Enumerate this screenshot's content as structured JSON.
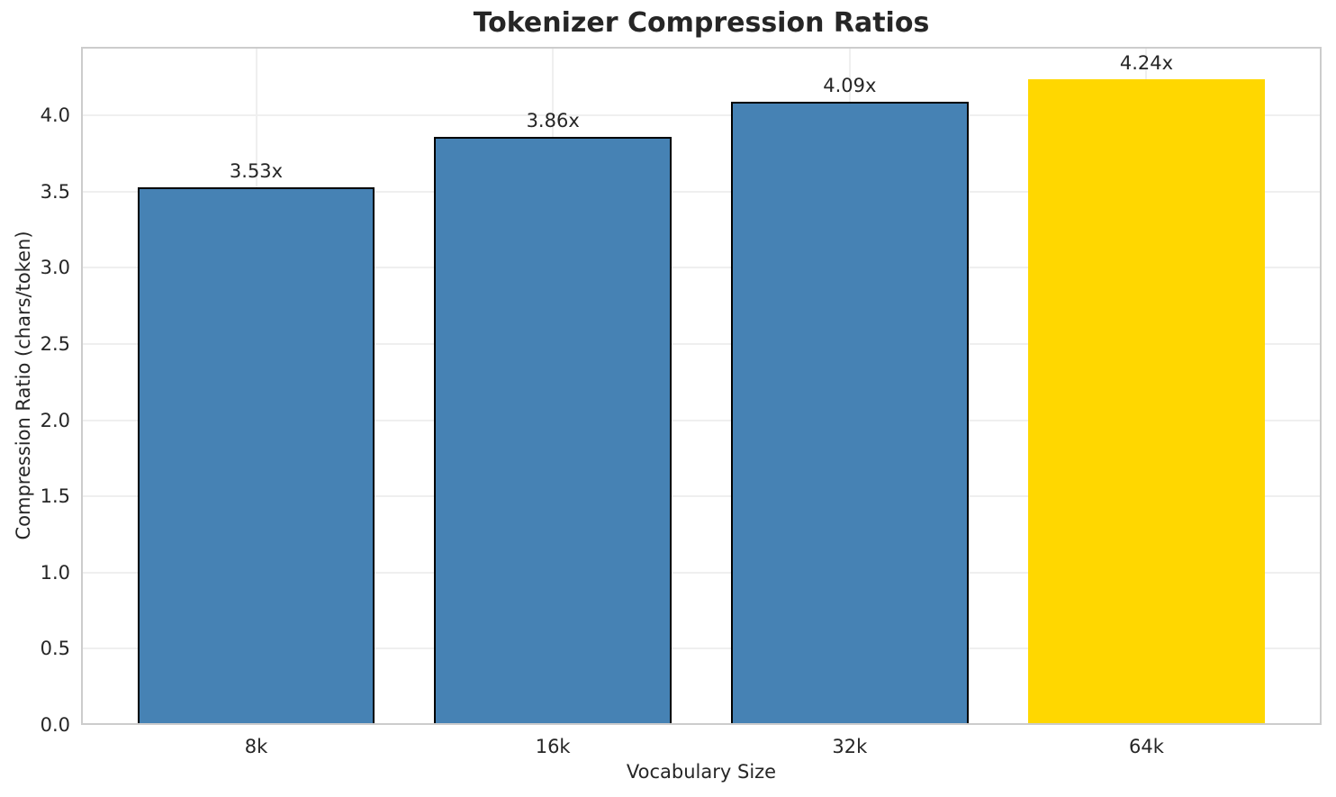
{
  "title": "Tokenizer Compression Ratios",
  "chart_data": {
    "type": "bar",
    "title": "Tokenizer Compression Ratios",
    "categories": [
      "8k",
      "16k",
      "32k",
      "64k"
    ],
    "values": [
      3.53,
      3.86,
      4.09,
      4.24
    ],
    "value_labels": [
      "3.53x",
      "3.86x",
      "4.09x",
      "4.24x"
    ],
    "xlabel": "Vocabulary Size",
    "ylabel": "Compression Ratio (chars/token)",
    "ylim": [
      0,
      4.45
    ],
    "y_ticks": [
      0.0,
      0.5,
      1.0,
      1.5,
      2.0,
      2.5,
      3.0,
      3.5,
      4.0
    ],
    "y_tick_labels": [
      "0.0",
      "0.5",
      "1.0",
      "1.5",
      "2.0",
      "2.5",
      "3.0",
      "3.5",
      "4.0"
    ],
    "grid": true,
    "legend": "none",
    "bar_colors": [
      "#4682B4",
      "#4682B4",
      "#4682B4",
      "#FFD700"
    ],
    "bar_edge_colors": [
      "#000000",
      "#000000",
      "#000000",
      "none"
    ],
    "highlight_index": 3
  },
  "colors": {
    "bar_blue": "#4682B4",
    "bar_gold": "#FFD700",
    "bar_edge": "#000000",
    "grid": "#efefef",
    "spine": "#cccccc",
    "text": "#262626"
  }
}
